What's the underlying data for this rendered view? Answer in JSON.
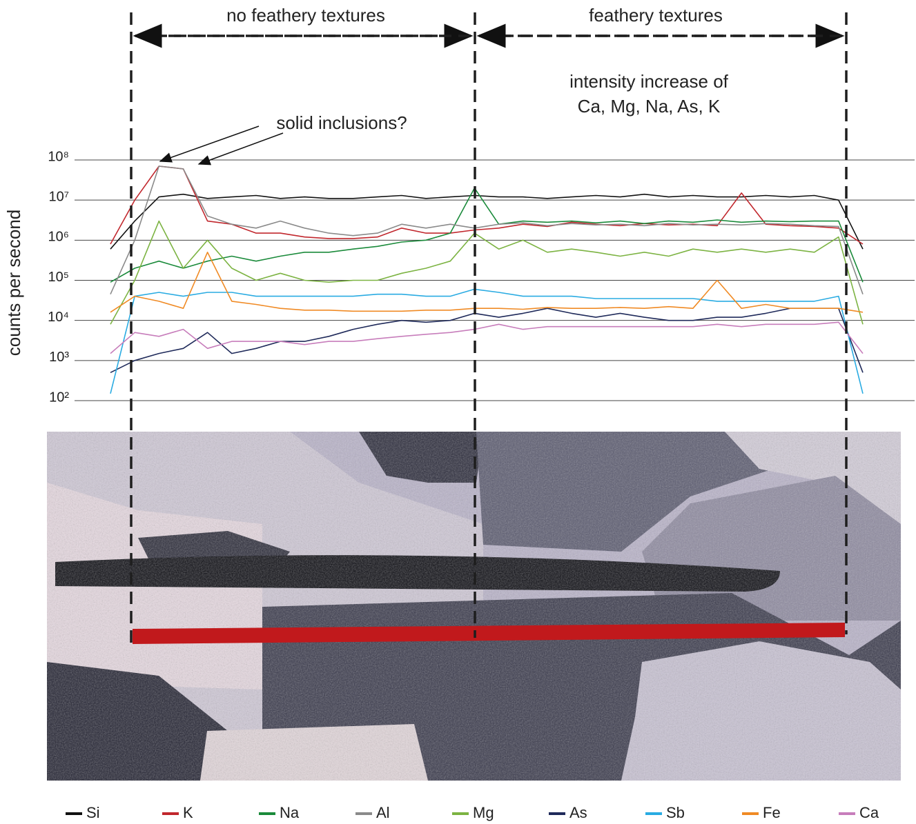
{
  "chart_data": {
    "type": "line",
    "y_label": "counts per second",
    "log_scale": true,
    "grid": true,
    "ylim": [
      100,
      100000000
    ],
    "yticks": [
      {
        "value": 100,
        "label": "10²"
      },
      {
        "value": 1000,
        "label": "10³"
      },
      {
        "value": 10000,
        "label": "10⁴"
      },
      {
        "value": 100000,
        "label": "10⁵"
      },
      {
        "value": 1000000,
        "label": "10⁶"
      },
      {
        "value": 10000000,
        "label": "10⁷"
      },
      {
        "value": 100000000,
        "label": "10⁸"
      }
    ],
    "annotations": [
      "no feathery textures",
      "feathery textures",
      "intensity increase of",
      "Ca, Mg, Na, As, K",
      "solid inclusions?"
    ],
    "categories": [
      null,
      null,
      null,
      null,
      null,
      null,
      null,
      null,
      null,
      null,
      null,
      null,
      null,
      null,
      null,
      null,
      null,
      null,
      null,
      null,
      null,
      null,
      null,
      null,
      null,
      null,
      null,
      null,
      null,
      null,
      null,
      null
    ],
    "series": [
      {
        "name": "Si",
        "color": "#111111",
        "values": [
          600000,
          3000000,
          12000000,
          14000000,
          11000000,
          12000000,
          13000000,
          11000000,
          12000000,
          11000000,
          11000000,
          12000000,
          13000000,
          11000000,
          12000000,
          13000000,
          12000000,
          12000000,
          11000000,
          12000000,
          13000000,
          12000000,
          14000000,
          12000000,
          13000000,
          12000000,
          12000000,
          13000000,
          12000000,
          13000000,
          10000000,
          600000
        ]
      },
      {
        "name": "K",
        "color": "#c1272d",
        "values": [
          800000,
          10000000,
          70000000,
          60000000,
          3000000,
          2500000,
          1500000,
          1500000,
          1200000,
          1100000,
          1100000,
          1200000,
          2000000,
          1500000,
          1500000,
          1800000,
          2000000,
          2500000,
          2200000,
          2800000,
          2500000,
          2300000,
          2600000,
          2400000,
          2500000,
          2300000,
          15000000,
          2500000,
          2300000,
          2200000,
          2000000,
          800000
        ]
      },
      {
        "name": "Na",
        "color": "#1a8a3a",
        "values": [
          90000,
          200000,
          300000,
          200000,
          300000,
          400000,
          300000,
          400000,
          500000,
          500000,
          600000,
          700000,
          900000,
          1000000,
          1500000,
          20000000,
          2500000,
          3000000,
          2800000,
          3000000,
          2700000,
          3000000,
          2600000,
          3000000,
          2800000,
          3200000,
          2800000,
          3000000,
          2900000,
          3000000,
          3000000,
          90000
        ]
      },
      {
        "name": "Al",
        "color": "#8a8a8a",
        "values": [
          45000,
          1000000,
          70000000,
          60000000,
          4000000,
          2500000,
          2000000,
          3000000,
          2000000,
          1500000,
          1300000,
          1500000,
          2500000,
          2000000,
          2500000,
          2000000,
          2500000,
          2700000,
          2300000,
          2600000,
          2400000,
          2500000,
          2300000,
          2600000,
          2400000,
          2500000,
          2400000,
          2600000,
          2500000,
          2300000,
          2200000,
          45000
        ]
      },
      {
        "name": "Mg",
        "color": "#7cb342",
        "values": [
          8000,
          100000,
          3000000,
          200000,
          1000000,
          200000,
          100000,
          150000,
          100000,
          90000,
          100000,
          100000,
          150000,
          200000,
          300000,
          1500000,
          600000,
          1000000,
          500000,
          600000,
          500000,
          400000,
          500000,
          400000,
          600000,
          500000,
          600000,
          500000,
          600000,
          500000,
          1200000,
          8000
        ]
      },
      {
        "name": "As",
        "color": "#1f2a5a",
        "values": [
          500,
          1000,
          1500,
          2000,
          5000,
          1500,
          2000,
          3000,
          3000,
          4000,
          6000,
          8000,
          10000,
          9000,
          10000,
          15000,
          12000,
          15000,
          20000,
          15000,
          12000,
          15000,
          12000,
          10000,
          10000,
          12000,
          12000,
          15000,
          20000,
          20000,
          20000,
          500
        ]
      },
      {
        "name": "Sb",
        "color": "#29abe2",
        "values": [
          150,
          40000,
          50000,
          40000,
          50000,
          50000,
          40000,
          40000,
          40000,
          40000,
          40000,
          45000,
          45000,
          40000,
          40000,
          60000,
          50000,
          40000,
          40000,
          40000,
          35000,
          35000,
          35000,
          35000,
          35000,
          30000,
          30000,
          30000,
          30000,
          30000,
          40000,
          150
        ]
      },
      {
        "name": "Fe",
        "color": "#f08a24",
        "values": [
          16000,
          40000,
          30000,
          20000,
          500000,
          30000,
          25000,
          20000,
          18000,
          18000,
          17000,
          17000,
          17000,
          18000,
          18000,
          20000,
          20000,
          19000,
          21000,
          20000,
          20000,
          21000,
          20000,
          22000,
          20000,
          100000,
          20000,
          25000,
          20000,
          20000,
          20000,
          16000
        ]
      },
      {
        "name": "Ca",
        "color": "#c77dbb",
        "values": [
          1500,
          5000,
          4000,
          6000,
          2000,
          3000,
          3000,
          3000,
          2500,
          3000,
          3000,
          3500,
          4000,
          4500,
          5000,
          6000,
          8000,
          6000,
          7000,
          7000,
          7000,
          7000,
          7000,
          7000,
          7000,
          8000,
          7000,
          8000,
          8000,
          8000,
          9000,
          1500
        ]
      }
    ]
  }
}
